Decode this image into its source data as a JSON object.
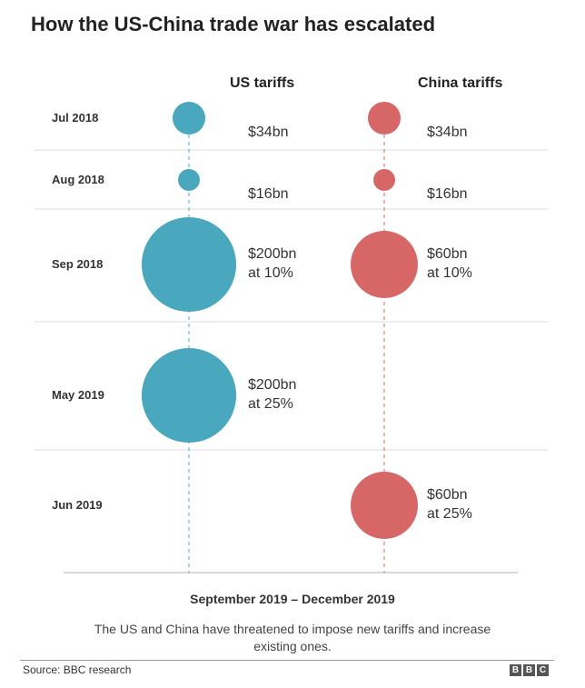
{
  "chart_data": {
    "type": "bubble-timeline",
    "title": "How the US-China trade war has escalated",
    "columns": [
      "US tariffs",
      "China tariffs"
    ],
    "colors": {
      "US tariffs": "#4aa8be",
      "China tariffs": "#d76767"
    },
    "rows": [
      {
        "date": "Jul 2018",
        "us": {
          "value": 34,
          "label": [
            "$34bn"
          ]
        },
        "china": {
          "value": 34,
          "label": [
            "$34bn"
          ]
        }
      },
      {
        "date": "Aug 2018",
        "us": {
          "value": 16,
          "label": [
            "$16bn"
          ]
        },
        "china": {
          "value": 16,
          "label": [
            "$16bn"
          ]
        }
      },
      {
        "date": "Sep 2018",
        "us": {
          "value": 200,
          "rate": "10%",
          "label": [
            "$200bn",
            "at 10%"
          ]
        },
        "china": {
          "value": 60,
          "rate": "10%",
          "label": [
            "$60bn",
            "at 10%"
          ]
        }
      },
      {
        "date": "May 2019",
        "us": {
          "value": 200,
          "rate": "25%",
          "label": [
            "$200bn",
            "at 25%"
          ]
        },
        "china": null
      },
      {
        "date": "Jun 2019",
        "us": null,
        "china": {
          "value": 60,
          "rate": "25%",
          "label": [
            "$60bn",
            "at 25%"
          ]
        }
      }
    ],
    "units": "bn USD"
  },
  "footer": {
    "period": "September 2019 – December 2019",
    "note": "The US and China have threatened to impose new tariffs and increase existing ones.",
    "source": "Source: BBC research",
    "logo": [
      "B",
      "B",
      "C"
    ]
  }
}
